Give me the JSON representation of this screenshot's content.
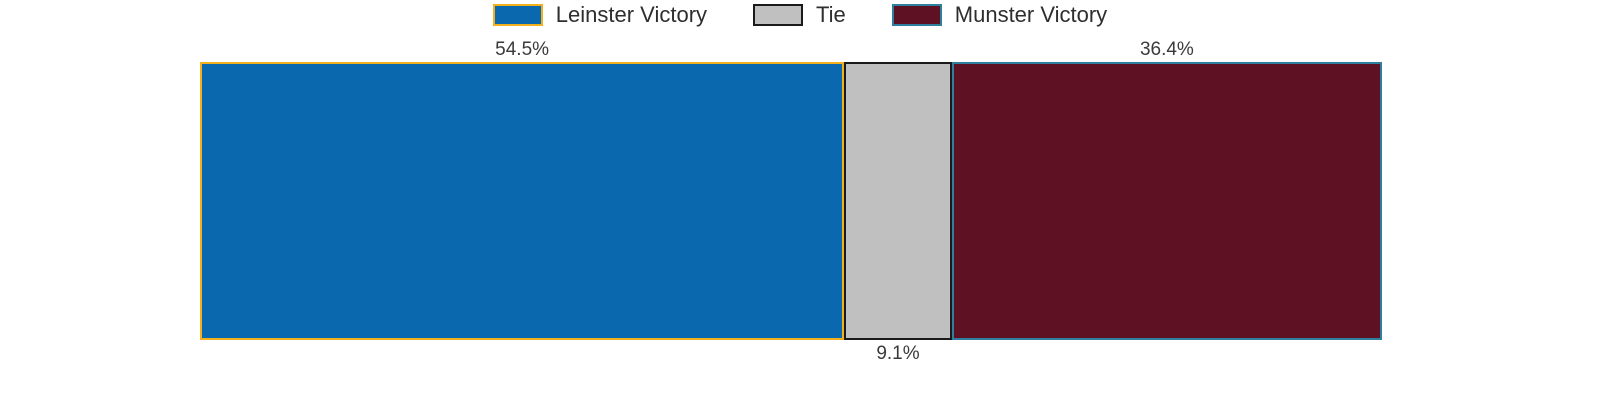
{
  "legend": {
    "position": "top-center",
    "items": [
      {
        "label": "Leinster Victory",
        "color": "#0968AE",
        "border": "#F2B01E"
      },
      {
        "label": "Tie",
        "color": "#C0C0C0",
        "border": "#1A1A1A"
      },
      {
        "label": "Munster Victory",
        "color": "#5D1123",
        "border": "#2F7E9E"
      }
    ]
  },
  "chart_data": {
    "type": "bar",
    "variant": "horizontal-stacked-single-bar",
    "title": "",
    "xlabel": "",
    "ylabel": "",
    "axes_visible": false,
    "grid": false,
    "categories": [
      "Leinster Victory",
      "Tie",
      "Munster Victory"
    ],
    "values": [
      54.5,
      9.1,
      36.4
    ],
    "unit": "%",
    "data_labels": [
      "54.5%",
      "9.1%",
      "36.4%"
    ],
    "data_label_positions": [
      "above",
      "below",
      "above"
    ],
    "segment_colors": [
      "#0968AE",
      "#C0C0C0",
      "#5D1123"
    ],
    "segment_border_colors": [
      "#F2B01E",
      "#1A1A1A",
      "#2F7E9E"
    ],
    "xlim": [
      0,
      100
    ]
  }
}
